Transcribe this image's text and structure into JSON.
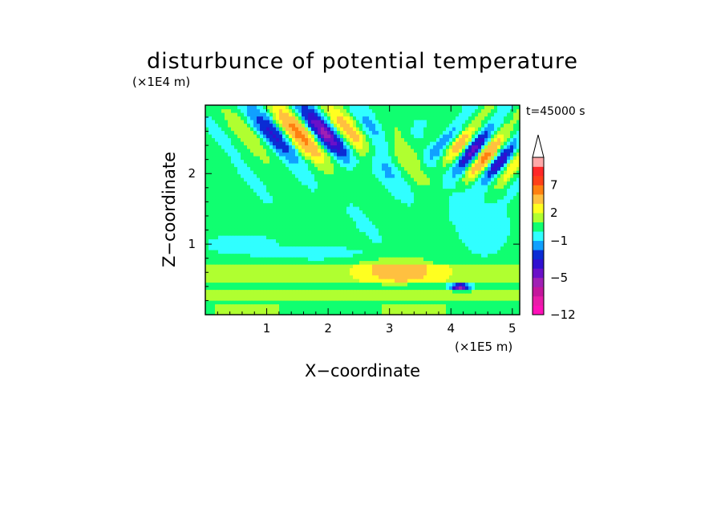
{
  "chart_data": {
    "type": "heatmap",
    "title": "disturbunce of potential temperature",
    "xlabel": "X−coordinate",
    "ylabel": "Z−coordinate",
    "x_unit": "(×1E5 m)",
    "y_unit": "(×1E4 m)",
    "time_label": "t=45000 s",
    "xlim": [
      0,
      5.12
    ],
    "ylim": [
      0,
      2.97
    ],
    "x_ticks": [
      "1",
      "2",
      "3",
      "4",
      "5"
    ],
    "y_ticks": [
      "1",
      "2"
    ],
    "colorbar": {
      "levels": [
        -12,
        -10,
        -8,
        -6,
        -5,
        -4,
        -3,
        -2,
        -1,
        0,
        1,
        2,
        3,
        5,
        7,
        9,
        11
      ],
      "colors": [
        "#ff10b8",
        "#e81ca8",
        "#c4169c",
        "#a020b4",
        "#6a10c8",
        "#3010d0",
        "#0b2cd4",
        "#10a0ff",
        "#30ffff",
        "#10ff70",
        "#b0ff30",
        "#ffff20",
        "#ffc040",
        "#ff8010",
        "#ff4018",
        "#ff2828",
        "#ffa8a8"
      ],
      "labels": [
        "−12",
        "−5",
        "−1",
        "2",
        "7"
      ],
      "extend": "max"
    },
    "fields": [
      {
        "type": "wave-red",
        "cx": 1.7,
        "cz": 2.45,
        "ax": 1.3,
        "az": 0.6,
        "wave": 0.45,
        "amp": 6.5
      },
      {
        "type": "wave-red",
        "cx": 4.6,
        "cz": 2.5,
        "ax": 0.7,
        "az": 0.55,
        "wave": 0.3,
        "amp": 8
      },
      {
        "type": "wave-red",
        "cx": 2.9,
        "cz": 2.0,
        "ax": 0.8,
        "az": 0.7,
        "wave": 0.5,
        "amp": 3.5
      },
      {
        "type": "band",
        "z0": 0.48,
        "z1": 0.72,
        "val": 1.6
      },
      {
        "type": "band",
        "z0": 0.18,
        "z1": 0.38,
        "val": 1.4
      },
      {
        "type": "band",
        "z0": 0.0,
        "z1": 0.14,
        "val": 0.8
      },
      {
        "type": "blob",
        "cx": 3.1,
        "cz": 0.63,
        "ax": 0.7,
        "az": 0.2,
        "val": 2.0
      },
      {
        "type": "blob",
        "cx": 4.55,
        "cz": 1.25,
        "ax": 0.35,
        "az": 0.35,
        "val": -1.2
      },
      {
        "type": "blob",
        "cx": 0.6,
        "cz": 1.0,
        "ax": 0.5,
        "az": 0.12,
        "val": -1.1
      },
      {
        "type": "blob",
        "cx": 2.0,
        "cz": 0.88,
        "ax": 0.9,
        "az": 0.09,
        "val": -0.9
      },
      {
        "type": "blob",
        "cx": 4.2,
        "cz": 1.55,
        "ax": 0.25,
        "az": 0.25,
        "val": -0.9
      },
      {
        "type": "blob",
        "cx": 4.15,
        "cz": 0.4,
        "ax": 0.15,
        "az": 0.05,
        "val": -6
      }
    ]
  }
}
